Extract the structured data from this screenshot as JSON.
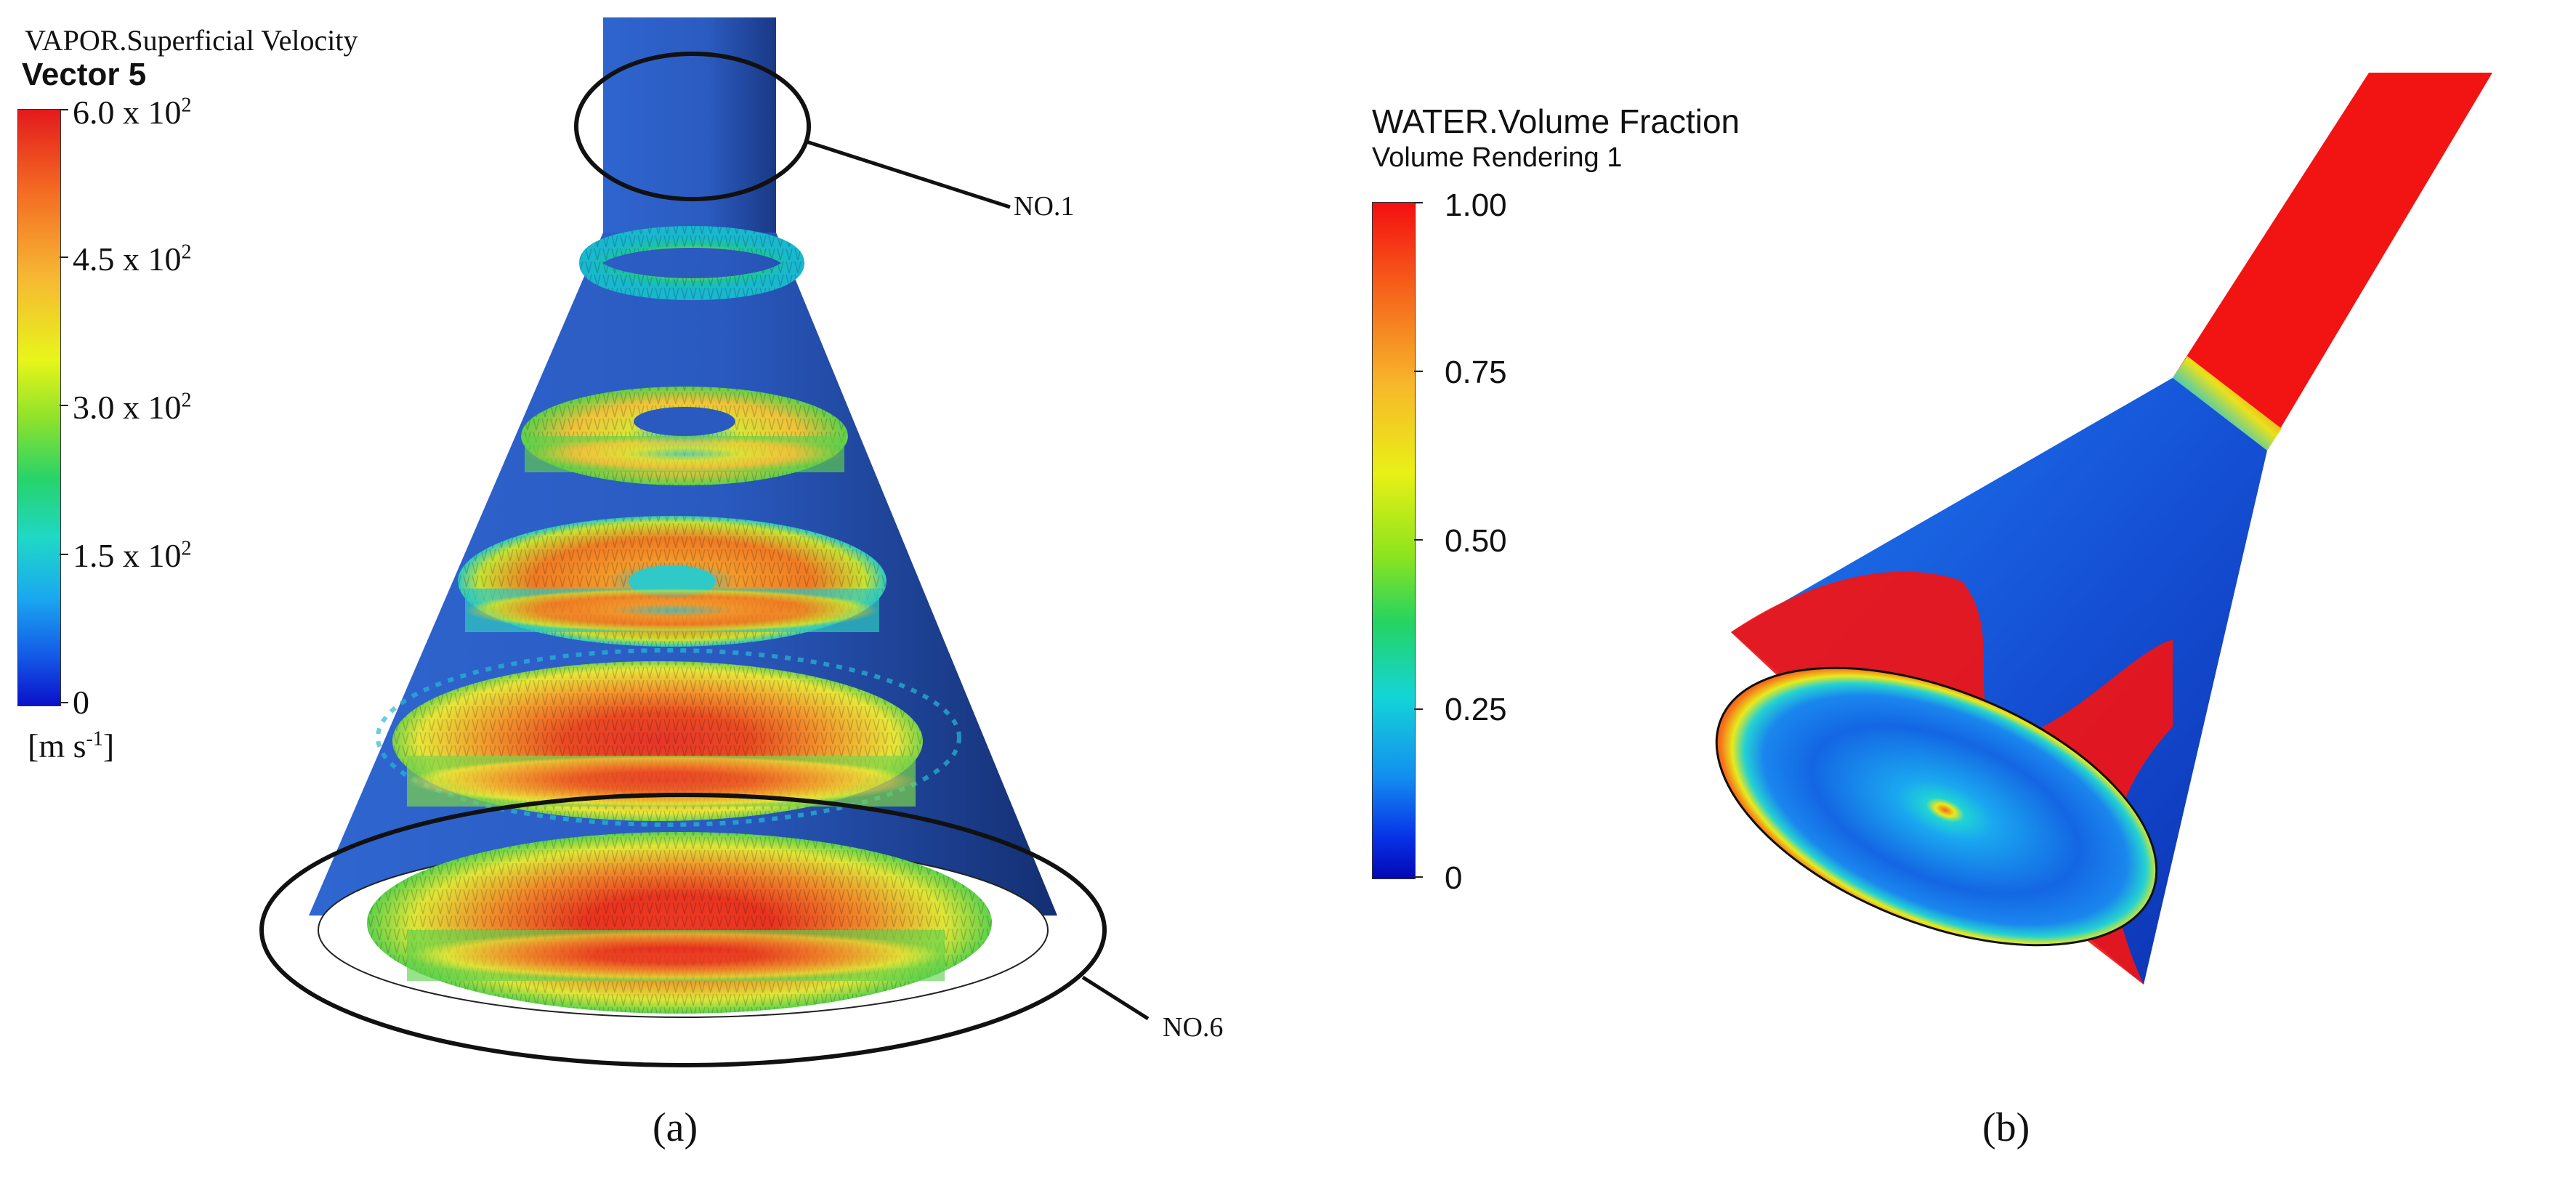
{
  "panel_a": {
    "title_line1": "VAPOR.Superficial Velocity",
    "title_line2": "Vector 5",
    "legend_ticks": [
      {
        "mantissa": "6.0 x 10",
        "exp": "2"
      },
      {
        "mantissa": "4.5 x 10",
        "exp": "2"
      },
      {
        "mantissa": "3.0 x 10",
        "exp": "2"
      },
      {
        "mantissa": "1.5 x 10",
        "exp": "2"
      },
      {
        "mantissa": "0",
        "exp": ""
      }
    ],
    "unit_base": "[m s",
    "unit_exp": "-1",
    "unit_close": "]",
    "callout_top": "NO.1",
    "callout_bottom": "NO.6",
    "caption": "(a)"
  },
  "panel_b": {
    "title_line1": "WATER.Volume Fraction",
    "title_line2": "Volume Rendering 1",
    "legend_ticks": [
      "1.00",
      "0.75",
      "0.50",
      "0.25",
      "0"
    ],
    "caption": "(b)"
  },
  "colors": {
    "cone_blue": "#2c5fc6",
    "cone_blue_dark": "#1d3f96",
    "fluid_red": "#f21313",
    "low_blue": "#1a4fd8"
  }
}
